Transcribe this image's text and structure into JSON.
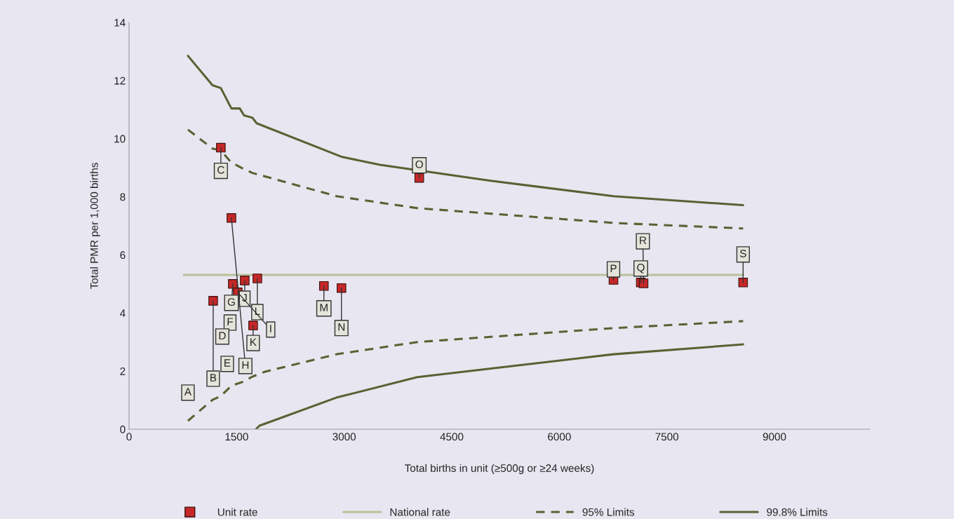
{
  "chart_data": {
    "type": "line",
    "xlabel": "Total births in unit (≥500g or ≥24 weeks)",
    "ylabel": "Total PMR per 1,000 births",
    "xlim": [
      0,
      10330
    ],
    "xticks": [
      0,
      1500,
      3000,
      4500,
      6000,
      7500,
      9000
    ],
    "ylim": [
      0,
      14
    ],
    "yticks": [
      0,
      2,
      4,
      6,
      8,
      10,
      12,
      14
    ],
    "grid": false,
    "legend": "bottom",
    "series": [
      {
        "name": "Unit rate",
        "type": "scatter",
        "marker": "square",
        "color": "#c62828",
        "x": [
          821,
          1173,
          1280,
          1300,
          1369,
          1408,
          1447,
          1427,
          1515,
          1613,
          1730,
          1789,
          2717,
          2962,
          4047,
          6755,
          7136,
          7175,
          8563
        ],
        "values": [
          1.26,
          4.42,
          9.69,
          3.19,
          2.25,
          3.67,
          5.0,
          7.27,
          4.71,
          5.12,
          3.57,
          5.19,
          4.93,
          4.86,
          8.65,
          5.14,
          5.05,
          5.02,
          5.05
        ]
      },
      {
        "name": "National rate",
        "type": "line",
        "line_style": "solid",
        "color": "#b8c29a",
        "x": [
          762,
          8563
        ],
        "values": [
          5.31,
          5.31
        ]
      },
      {
        "name": "95% Limits",
        "type": "line",
        "line_style": "dashed",
        "color": "#5a6133",
        "x": [
          821,
          1163,
          1280,
          1427,
          1574,
          1720,
          1896,
          2893,
          4017,
          6755,
          8563
        ],
        "values": [
          10.31,
          9.66,
          9.59,
          9.18,
          8.99,
          8.82,
          8.7,
          8.02,
          7.61,
          7.1,
          6.91
        ]
      },
      {
        "type": "line",
        "line_style": "dashed",
        "color": "#5a6133",
        "x": [
          821,
          1163,
          1280,
          1427,
          1574,
          1720,
          1896,
          2893,
          4017,
          6755,
          8563
        ],
        "values": [
          0.29,
          1.01,
          1.14,
          1.5,
          1.62,
          1.81,
          1.98,
          2.58,
          3.0,
          3.48,
          3.72
        ]
      },
      {
        "name": "99.8% Limits",
        "type": "line",
        "line_style": "solid",
        "color": "#5a6133",
        "x": [
          821,
          1163,
          1280,
          1427,
          1544,
          1603,
          1720,
          1779,
          2972,
          3500,
          5044,
          6755,
          8563
        ],
        "values": [
          12.85,
          11.84,
          11.74,
          11.04,
          11.04,
          10.8,
          10.72,
          10.53,
          9.37,
          9.1,
          8.55,
          8.02,
          7.71
        ]
      },
      {
        "type": "line",
        "line_style": "solid",
        "color": "#5a6133",
        "x": [
          1769,
          1818,
          2893,
          4017,
          6755,
          8563
        ],
        "values": [
          0.0,
          0.12,
          1.09,
          1.79,
          2.58,
          2.92
        ]
      }
    ],
    "annotations": [
      {
        "text": "A",
        "x": 821,
        "y": 1.26
      },
      {
        "text": "B",
        "x": 1173,
        "y": 4.42
      },
      {
        "text": "C",
        "x": 1280,
        "y": 9.69
      },
      {
        "text": "D",
        "x": 1300,
        "y": 3.19
      },
      {
        "text": "E",
        "x": 1369,
        "y": 2.25
      },
      {
        "text": "F",
        "x": 1408,
        "y": 3.67
      },
      {
        "text": "G",
        "x": 1447,
        "y": 5.0
      },
      {
        "text": "H",
        "x": 1427,
        "y": 7.27
      },
      {
        "text": "I",
        "x": 1515,
        "y": 4.71
      },
      {
        "text": "J",
        "x": 1613,
        "y": 5.12
      },
      {
        "text": "K",
        "x": 1730,
        "y": 3.57
      },
      {
        "text": "L",
        "x": 1789,
        "y": 5.19
      },
      {
        "text": "M",
        "x": 2717,
        "y": 4.93
      },
      {
        "text": "N",
        "x": 2962,
        "y": 4.86
      },
      {
        "text": "O",
        "x": 4047,
        "y": 8.65
      },
      {
        "text": "P",
        "x": 6755,
        "y": 5.14
      },
      {
        "text": "Q",
        "x": 7136,
        "y": 5.05
      },
      {
        "text": "R",
        "x": 7175,
        "y": 5.02
      },
      {
        "text": "S",
        "x": 8563,
        "y": 5.05
      }
    ]
  }
}
